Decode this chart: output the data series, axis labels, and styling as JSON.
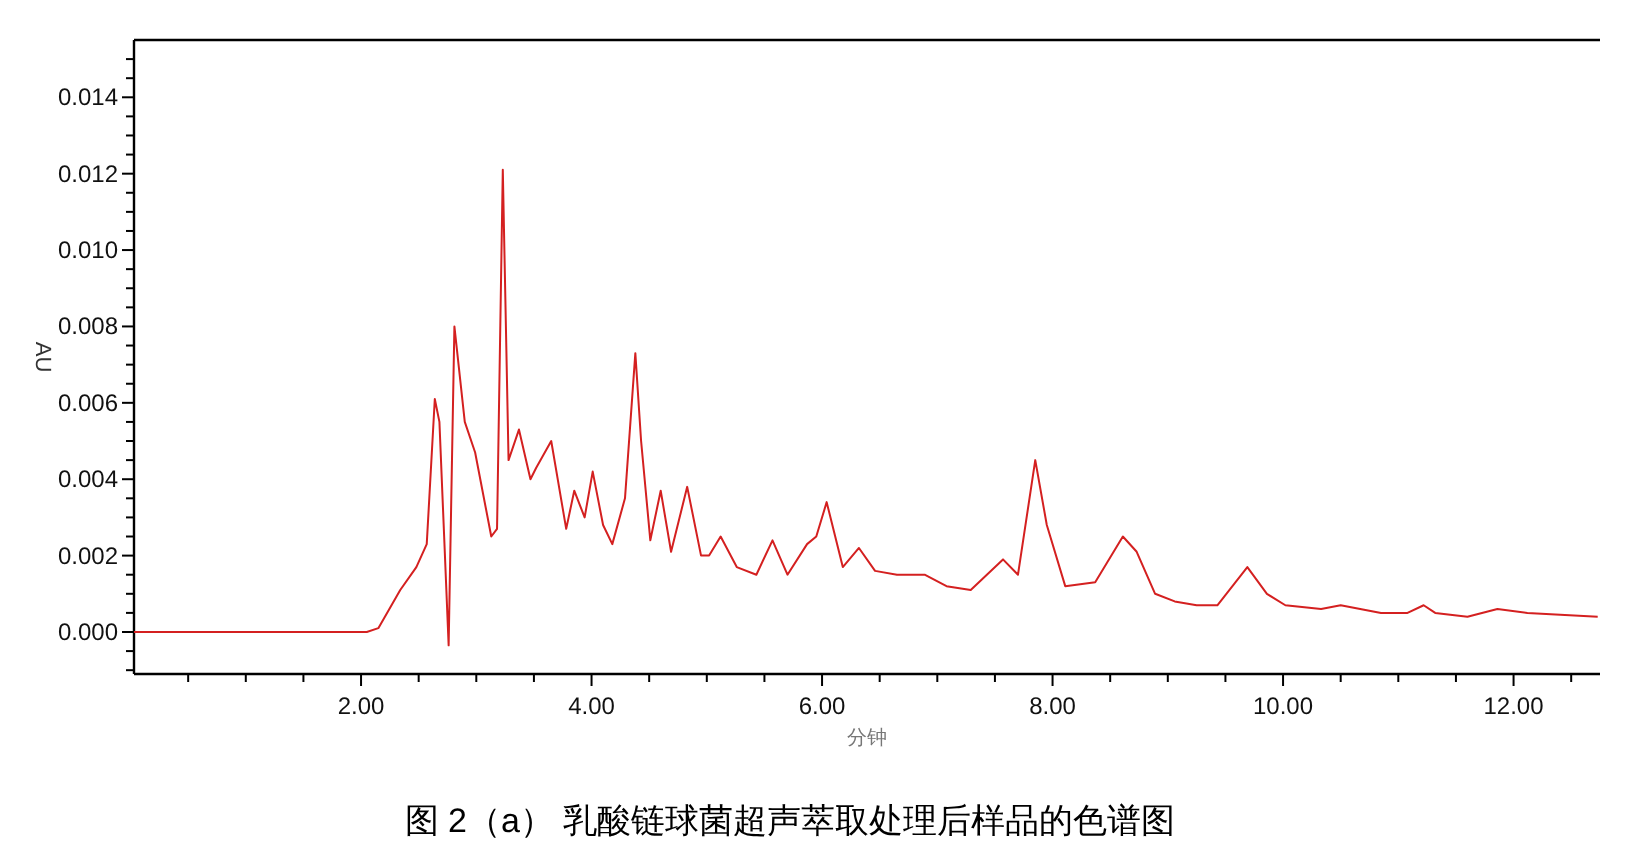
{
  "chart_data": {
    "type": "line",
    "title": "图 2（a） 乳酸链球菌超声萃取处理后样品的色谱图",
    "xlabel": "分钟",
    "ylabel": "AU",
    "xlim": [
      0.03,
      12.75
    ],
    "ylim": [
      -0.0011,
      0.0155
    ],
    "xticks": [
      {
        "value": 0.5,
        "label": null
      },
      {
        "value": 1,
        "label": null
      },
      {
        "value": 1.5,
        "label": null
      },
      {
        "value": 2,
        "label": "2.00"
      },
      {
        "value": 2.5,
        "label": null
      },
      {
        "value": 3,
        "label": null
      },
      {
        "value": 3.5,
        "label": null
      },
      {
        "value": 4,
        "label": "4.00"
      },
      {
        "value": 4.5,
        "label": null
      },
      {
        "value": 5,
        "label": null
      },
      {
        "value": 5.5,
        "label": null
      },
      {
        "value": 6,
        "label": "6.00"
      },
      {
        "value": 6.5,
        "label": null
      },
      {
        "value": 7,
        "label": null
      },
      {
        "value": 7.5,
        "label": null
      },
      {
        "value": 8,
        "label": "8.00"
      },
      {
        "value": 8.5,
        "label": null
      },
      {
        "value": 9,
        "label": null
      },
      {
        "value": 9.5,
        "label": null
      },
      {
        "value": 10,
        "label": "10.00"
      },
      {
        "value": 10.5,
        "label": null
      },
      {
        "value": 11,
        "label": null
      },
      {
        "value": 11.5,
        "label": null
      },
      {
        "value": 12,
        "label": "12.00"
      },
      {
        "value": 12.5,
        "label": null
      }
    ],
    "yticks": [
      {
        "value": -0.001,
        "label": null
      },
      {
        "value": -0.0005,
        "label": null
      },
      {
        "value": 0,
        "label": "0.000"
      },
      {
        "value": 0.0005,
        "label": null
      },
      {
        "value": 0.001,
        "label": null
      },
      {
        "value": 0.0015,
        "label": null
      },
      {
        "value": 0.002,
        "label": "0.002"
      },
      {
        "value": 0.0025,
        "label": null
      },
      {
        "value": 0.003,
        "label": null
      },
      {
        "value": 0.0035,
        "label": null
      },
      {
        "value": 0.004,
        "label": "0.004"
      },
      {
        "value": 0.0045,
        "label": null
      },
      {
        "value": 0.005,
        "label": null
      },
      {
        "value": 0.0055,
        "label": null
      },
      {
        "value": 0.006,
        "label": "0.006"
      },
      {
        "value": 0.0065,
        "label": null
      },
      {
        "value": 0.007,
        "label": null
      },
      {
        "value": 0.0075,
        "label": null
      },
      {
        "value": 0.008,
        "label": "0.008"
      },
      {
        "value": 0.0085,
        "label": null
      },
      {
        "value": 0.009,
        "label": null
      },
      {
        "value": 0.0095,
        "label": null
      },
      {
        "value": 0.01,
        "label": "0.010"
      },
      {
        "value": 0.0105,
        "label": null
      },
      {
        "value": 0.011,
        "label": null
      },
      {
        "value": 0.0115,
        "label": null
      },
      {
        "value": 0.012,
        "label": "0.012"
      },
      {
        "value": 0.0125,
        "label": null
      },
      {
        "value": 0.013,
        "label": null
      },
      {
        "value": 0.0135,
        "label": null
      },
      {
        "value": 0.014,
        "label": "0.014"
      },
      {
        "value": 0.0145,
        "label": null
      },
      {
        "value": 0.015,
        "label": null
      }
    ],
    "grid": false,
    "marker": "none",
    "line_style": "solid",
    "x": [
      0.03,
      0.5,
      1.0,
      1.5,
      1.8,
      2.05,
      2.15,
      2.34,
      2.48,
      2.57,
      2.64,
      2.68,
      2.76,
      2.81,
      2.9,
      2.99,
      3.13,
      3.18,
      3.23,
      3.28,
      3.37,
      3.47,
      3.52,
      3.65,
      3.78,
      3.85,
      3.94,
      4.01,
      4.1,
      4.18,
      4.29,
      4.38,
      4.43,
      4.51,
      4.6,
      4.69,
      4.83,
      4.95,
      5.02,
      5.12,
      5.26,
      5.43,
      5.57,
      5.7,
      5.87,
      5.95,
      6.04,
      6.18,
      6.32,
      6.46,
      6.65,
      6.89,
      7.08,
      7.29,
      7.43,
      7.57,
      7.7,
      7.85,
      7.95,
      8.11,
      8.37,
      8.61,
      8.73,
      8.89,
      9.06,
      9.25,
      9.43,
      9.69,
      9.86,
      10.02,
      10.33,
      10.5,
      10.85,
      11.08,
      11.22,
      11.32,
      11.6,
      11.86,
      12.12,
      12.73
    ],
    "series": [
      {
        "color": "#d42020",
        "values": [
          0,
          0,
          0,
          0,
          0,
          0,
          0.0001,
          0.0011,
          0.0017,
          0.0023,
          0.0061,
          0.0055,
          -0.00035,
          0.008,
          0.0055,
          0.0047,
          0.0025,
          0.0027,
          0.0121,
          0.0045,
          0.0053,
          0.004,
          0.0043,
          0.005,
          0.0027,
          0.0037,
          0.003,
          0.0042,
          0.0028,
          0.0023,
          0.0035,
          0.0073,
          0.005,
          0.0024,
          0.0037,
          0.0021,
          0.0038,
          0.002,
          0.002,
          0.0025,
          0.0017,
          0.0015,
          0.0024,
          0.0015,
          0.0023,
          0.0025,
          0.0034,
          0.0017,
          0.0022,
          0.0016,
          0.0015,
          0.0015,
          0.0012,
          0.0011,
          0.0015,
          0.0019,
          0.0015,
          0.0045,
          0.0028,
          0.0012,
          0.0013,
          0.0025,
          0.0021,
          0.001,
          0.0008,
          0.0007,
          0.0007,
          0.0017,
          0.001,
          0.0007,
          0.0006,
          0.0007,
          0.0005,
          0.0005,
          0.0007,
          0.0005,
          0.0004,
          0.0006,
          0.0005,
          0.0004
        ]
      }
    ]
  }
}
